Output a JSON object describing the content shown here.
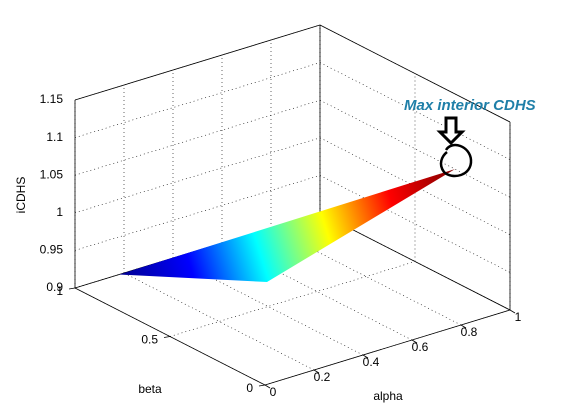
{
  "chart_data": {
    "type": "surface",
    "colormap": "jet",
    "annotation": "Max interior CDHS",
    "xlabel": "alpha",
    "ylabel": "beta",
    "zlabel": "iCDHS",
    "x": [
      0.18,
      0.52,
      1
    ],
    "y": [
      1,
      0.66,
      0.29
    ],
    "z": [
      0.9,
      0.9,
      1.05
    ],
    "xlim": [
      0,
      1
    ],
    "ylim": [
      0,
      1
    ],
    "zlim": [
      0.9,
      1.15
    ],
    "xticks": [
      0,
      0.2,
      0.4,
      0.6,
      0.8,
      1
    ],
    "yticks": [
      0,
      0.5,
      1
    ],
    "zticks": [
      0.9,
      0.95,
      1,
      1.05,
      1.1,
      1.15
    ],
    "grid": true
  }
}
